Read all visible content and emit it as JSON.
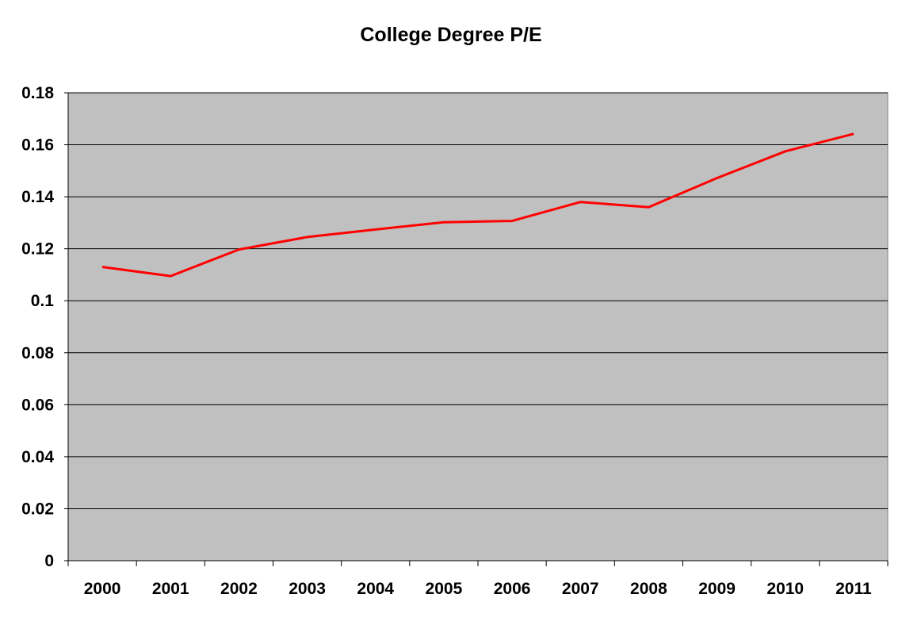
{
  "chart_data": {
    "type": "line",
    "title": "College Degree P/E",
    "xlabel": "",
    "ylabel": "",
    "categories": [
      "2000",
      "2001",
      "2002",
      "2003",
      "2004",
      "2005",
      "2006",
      "2007",
      "2008",
      "2009",
      "2010",
      "2011"
    ],
    "series": [
      {
        "values": [
          0.113,
          0.1095,
          0.1197,
          0.1245,
          0.1274,
          0.1302,
          0.1307,
          0.138,
          0.136,
          0.1472,
          0.1575,
          0.1642
        ],
        "color": "#ff0000"
      }
    ],
    "ylim": [
      0,
      0.18
    ],
    "yticks": [
      "0",
      "0.02",
      "0.04",
      "0.06",
      "0.08",
      "0.1",
      "0.12",
      "0.14",
      "0.16",
      "0.18"
    ],
    "grid": true,
    "legend": "none",
    "plot_background": "#c0c0c0"
  }
}
